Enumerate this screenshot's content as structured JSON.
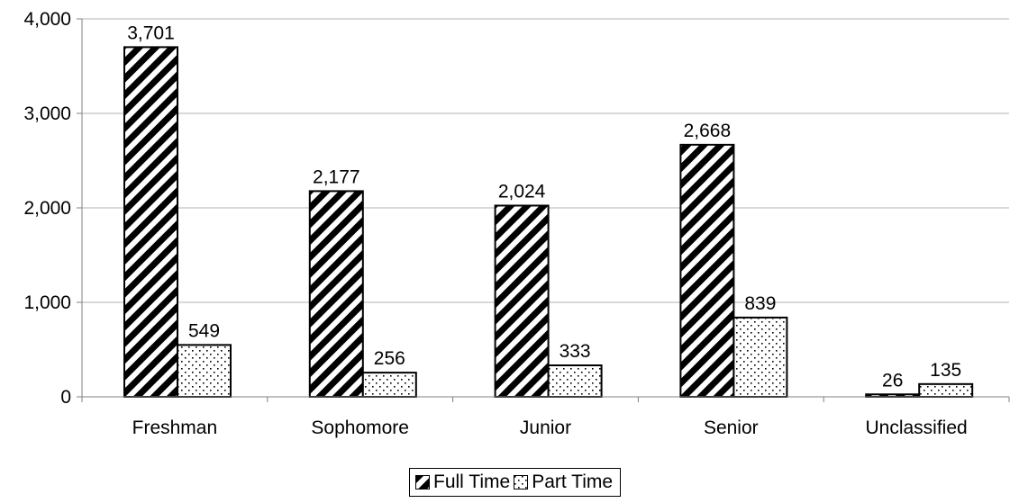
{
  "chart_data": {
    "type": "bar",
    "categories": [
      "Freshman",
      "Sophomore",
      "Junior",
      "Senior",
      "Unclassified"
    ],
    "series": [
      {
        "name": "Full Time",
        "values": [
          3701,
          2177,
          2024,
          2668,
          26
        ],
        "labels": [
          "3,701",
          "2,177",
          "2,024",
          "2,668",
          "26"
        ],
        "pattern": "diagonal-hatch"
      },
      {
        "name": "Part Time",
        "values": [
          549,
          256,
          333,
          839,
          135
        ],
        "labels": [
          "549",
          "256",
          "333",
          "839",
          "135"
        ],
        "pattern": "dots"
      }
    ],
    "yticks": [
      0,
      1000,
      2000,
      3000,
      4000
    ],
    "ytick_labels": [
      "0",
      "1,000",
      "2,000",
      "3,000",
      "4,000"
    ],
    "ylim": [
      0,
      4000
    ],
    "grid": true,
    "legend_position": "bottom-center",
    "colors": {
      "bar_outline": "#000000",
      "bar_fill": "#ffffff",
      "grid": "#b3b3b3",
      "axis": "#808080"
    }
  }
}
